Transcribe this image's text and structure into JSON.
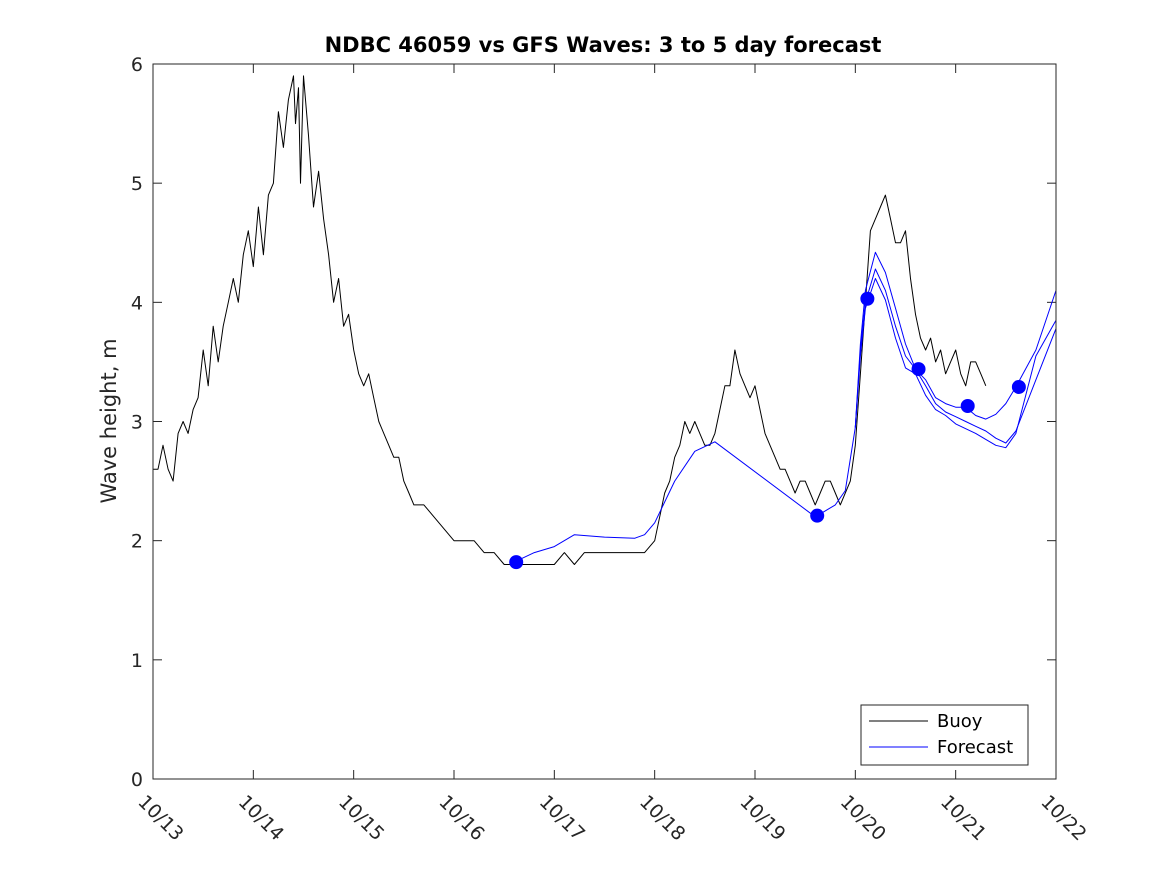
{
  "chart_data": {
    "type": "line",
    "title": "NDBC 46059 vs GFS Waves: 3 to 5 day forecast",
    "xlabel": "",
    "ylabel": "Wave height, m",
    "xlim": [
      13,
      22
    ],
    "ylim": [
      0,
      6
    ],
    "x_ticks": [
      13,
      14,
      15,
      16,
      17,
      18,
      19,
      20,
      21,
      22
    ],
    "x_tick_labels": [
      "10/13",
      "10/14",
      "10/15",
      "10/16",
      "10/17",
      "10/18",
      "10/19",
      "10/20",
      "10/21",
      "10/22"
    ],
    "y_ticks": [
      0,
      1,
      2,
      3,
      4,
      5,
      6
    ],
    "y_tick_labels": [
      "0",
      "1",
      "2",
      "3",
      "4",
      "5",
      "6"
    ],
    "legend": {
      "location": "bottom-right",
      "entries": [
        "Buoy",
        "Forecast"
      ]
    },
    "colors": {
      "buoy": "#000000",
      "forecast": "#0000ff",
      "axis": "#262626"
    },
    "series": [
      {
        "name": "Buoy",
        "x": [
          13.0,
          13.05,
          13.1,
          13.15,
          13.2,
          13.25,
          13.3,
          13.35,
          13.4,
          13.45,
          13.5,
          13.55,
          13.6,
          13.65,
          13.7,
          13.75,
          13.8,
          13.85,
          13.9,
          13.95,
          14.0,
          14.05,
          14.1,
          14.15,
          14.2,
          14.25,
          14.3,
          14.35,
          14.4,
          14.42,
          14.45,
          14.47,
          14.5,
          14.55,
          14.6,
          14.65,
          14.7,
          14.75,
          14.8,
          14.85,
          14.9,
          14.95,
          15.0,
          15.05,
          15.1,
          15.15,
          15.2,
          15.25,
          15.3,
          15.35,
          15.4,
          15.45,
          15.5,
          15.55,
          15.6,
          15.7,
          15.8,
          15.9,
          16.0,
          16.1,
          16.2,
          16.3,
          16.4,
          16.5,
          16.6,
          16.7,
          16.8,
          16.9,
          17.0,
          17.1,
          17.2,
          17.3,
          17.4,
          17.5,
          17.6,
          17.7,
          17.8,
          17.9,
          18.0,
          18.1,
          18.15,
          18.2,
          18.25,
          18.3,
          18.35,
          18.4,
          18.45,
          18.5,
          18.55,
          18.6,
          18.65,
          18.7,
          18.75,
          18.8,
          18.85,
          18.9,
          18.95,
          19.0,
          19.05,
          19.1,
          19.15,
          19.2,
          19.25,
          19.3,
          19.35,
          19.4,
          19.45,
          19.5,
          19.55,
          19.6,
          19.65,
          19.7,
          19.75,
          19.8,
          19.85,
          19.9,
          19.95,
          20.0,
          20.05,
          20.1,
          20.15,
          20.2,
          20.25,
          20.3,
          20.35,
          20.4,
          20.45,
          20.5,
          20.55,
          20.6,
          20.65,
          20.7,
          20.75,
          20.8,
          20.85,
          20.9,
          20.95,
          21.0,
          21.05,
          21.1,
          21.15,
          21.2,
          21.25,
          21.3
        ],
        "values": [
          2.6,
          2.6,
          2.8,
          2.6,
          2.5,
          2.9,
          3.0,
          2.9,
          3.1,
          3.2,
          3.6,
          3.3,
          3.8,
          3.5,
          3.8,
          4.0,
          4.2,
          4.0,
          4.4,
          4.6,
          4.3,
          4.8,
          4.4,
          4.9,
          5.0,
          5.6,
          5.3,
          5.7,
          5.9,
          5.5,
          5.8,
          5.0,
          5.9,
          5.4,
          4.8,
          5.1,
          4.7,
          4.4,
          4.0,
          4.2,
          3.8,
          3.9,
          3.6,
          3.4,
          3.3,
          3.4,
          3.2,
          3.0,
          2.9,
          2.8,
          2.7,
          2.7,
          2.5,
          2.4,
          2.3,
          2.3,
          2.2,
          2.1,
          2.0,
          2.0,
          2.0,
          1.9,
          1.9,
          1.8,
          1.8,
          1.8,
          1.8,
          1.8,
          1.8,
          1.9,
          1.8,
          1.9,
          1.9,
          1.9,
          1.9,
          1.9,
          1.9,
          1.9,
          2.0,
          2.4,
          2.5,
          2.7,
          2.8,
          3.0,
          2.9,
          3.0,
          2.9,
          2.8,
          2.8,
          2.9,
          3.1,
          3.3,
          3.3,
          3.6,
          3.4,
          3.3,
          3.2,
          3.3,
          3.1,
          2.9,
          2.8,
          2.7,
          2.6,
          2.6,
          2.5,
          2.4,
          2.5,
          2.5,
          2.4,
          2.3,
          2.4,
          2.5,
          2.5,
          2.4,
          2.3,
          2.4,
          2.5,
          2.8,
          3.4,
          4.0,
          4.6,
          4.7,
          4.8,
          4.9,
          4.7,
          4.5,
          4.5,
          4.6,
          4.2,
          3.9,
          3.7,
          3.6,
          3.7,
          3.5,
          3.6,
          3.4,
          3.5,
          3.6,
          3.4,
          3.3,
          3.5,
          3.5,
          3.4,
          3.3
        ]
      },
      {
        "name": "Forecast",
        "x": [
          16.6,
          16.8,
          17.0,
          17.2,
          17.5,
          17.8,
          17.9,
          18.0,
          18.2,
          18.4,
          18.6,
          19.6,
          19.7,
          19.8,
          19.9,
          20.0,
          20.05,
          20.1,
          20.2,
          20.3,
          20.4,
          20.5,
          20.6,
          20.7,
          20.8,
          20.9,
          21.0,
          21.1,
          21.2,
          21.3,
          21.4,
          21.5,
          21.6,
          21.8,
          22.0
        ],
        "values": [
          1.82,
          1.9,
          1.95,
          2.05,
          2.03,
          2.02,
          2.05,
          2.15,
          2.5,
          2.75,
          2.83,
          2.2,
          2.25,
          2.3,
          2.42,
          2.95,
          3.6,
          4.0,
          4.28,
          4.1,
          3.8,
          3.55,
          3.44,
          3.3,
          3.15,
          3.08,
          3.04,
          3.0,
          2.96,
          2.92,
          2.86,
          2.82,
          2.92,
          3.35,
          3.78
        ]
      },
      {
        "name": "Forecast (upper)",
        "x": [
          20.0,
          20.05,
          20.1,
          20.2,
          20.3,
          20.4,
          20.5,
          20.6,
          20.7,
          20.8,
          20.9,
          21.0,
          21.1,
          21.2,
          21.3,
          21.4,
          21.5,
          21.6,
          21.8,
          22.0
        ],
        "values": [
          2.95,
          3.65,
          4.1,
          4.42,
          4.25,
          3.95,
          3.65,
          3.44,
          3.35,
          3.2,
          3.15,
          3.12,
          3.12,
          3.05,
          3.02,
          3.06,
          3.15,
          3.29,
          3.6,
          4.1
        ]
      },
      {
        "name": "Forecast (lower)",
        "x": [
          20.0,
          20.05,
          20.1,
          20.2,
          20.3,
          20.4,
          20.5,
          20.6,
          20.7,
          20.8,
          20.9,
          21.0,
          21.1,
          21.2,
          21.3,
          21.4,
          21.5,
          21.6,
          21.8,
          22.0
        ],
        "values": [
          2.95,
          3.55,
          3.95,
          4.2,
          4.02,
          3.7,
          3.45,
          3.4,
          3.22,
          3.1,
          3.05,
          2.98,
          2.94,
          2.9,
          2.85,
          2.8,
          2.78,
          2.9,
          3.55,
          3.85
        ]
      }
    ],
    "markers": {
      "name": "Forecast points",
      "x": [
        16.62,
        19.62,
        20.12,
        20.63,
        21.12,
        21.63
      ],
      "values": [
        1.82,
        2.21,
        4.03,
        3.44,
        3.13,
        3.29
      ]
    }
  }
}
